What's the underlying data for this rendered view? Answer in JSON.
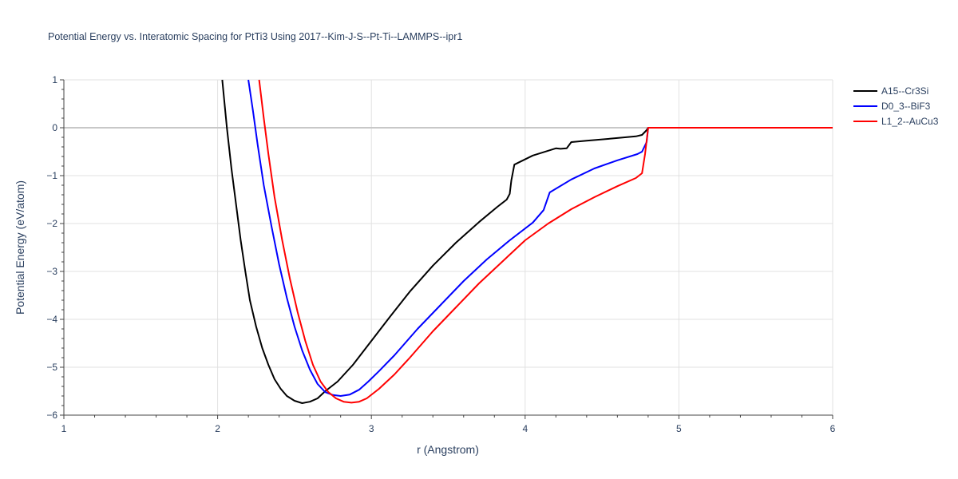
{
  "chart_data": {
    "type": "line",
    "title": "Potential Energy vs. Interatomic Spacing for PtTi3 Using 2017--Kim-J-S--Pt-Ti--LAMMPS--ipr1",
    "xlabel": "r (Angstrom)",
    "ylabel": "Potential Energy (eV/atom)",
    "xlim": [
      1,
      6
    ],
    "ylim": [
      -6,
      1
    ],
    "xticks": [
      1,
      2,
      3,
      4,
      5,
      6
    ],
    "xtick_labels": [
      "1",
      "2",
      "3",
      "4",
      "5",
      "6"
    ],
    "yticks": [
      1,
      0,
      -1,
      -2,
      -3,
      -4,
      -5,
      -6
    ],
    "ytick_labels": [
      "1",
      "0",
      "−1",
      "−2",
      "−3",
      "−4",
      "−5",
      "−6"
    ],
    "grid": true,
    "legend_position": "top-right",
    "series": [
      {
        "name": "A15--Cr3Si",
        "color": "#000000",
        "x": [
          2.03,
          2.06,
          2.09,
          2.12,
          2.15,
          2.18,
          2.21,
          2.25,
          2.29,
          2.33,
          2.37,
          2.41,
          2.45,
          2.5,
          2.55,
          2.6,
          2.65,
          2.7,
          2.78,
          2.88,
          3.0,
          3.12,
          3.25,
          3.4,
          3.55,
          3.7,
          3.82,
          3.88,
          3.9,
          3.91,
          3.93,
          4.05,
          4.2,
          4.23,
          4.27,
          4.3,
          4.4,
          4.55,
          4.72,
          4.76,
          4.79,
          4.8,
          5.0,
          5.5,
          6.0
        ],
        "y": [
          1.0,
          0.0,
          -0.85,
          -1.6,
          -2.35,
          -3.0,
          -3.6,
          -4.15,
          -4.6,
          -4.95,
          -5.25,
          -5.45,
          -5.6,
          -5.7,
          -5.75,
          -5.72,
          -5.65,
          -5.5,
          -5.3,
          -4.95,
          -4.45,
          -3.95,
          -3.42,
          -2.88,
          -2.4,
          -1.97,
          -1.65,
          -1.5,
          -1.38,
          -1.1,
          -0.77,
          -0.58,
          -0.43,
          -0.44,
          -0.43,
          -0.3,
          -0.27,
          -0.23,
          -0.18,
          -0.15,
          -0.05,
          0.0,
          0.0,
          0.0,
          0.0
        ]
      },
      {
        "name": "D0_3--BiF3",
        "color": "#0000ff",
        "x": [
          2.2,
          2.23,
          2.26,
          2.3,
          2.35,
          2.4,
          2.45,
          2.5,
          2.55,
          2.6,
          2.65,
          2.7,
          2.75,
          2.8,
          2.86,
          2.92,
          2.98,
          3.05,
          3.15,
          3.3,
          3.45,
          3.6,
          3.75,
          3.9,
          4.05,
          4.12,
          4.16,
          4.3,
          4.45,
          4.6,
          4.73,
          4.76,
          4.79,
          4.8,
          5.0,
          5.5,
          6.0
        ],
        "y": [
          1.0,
          0.35,
          -0.35,
          -1.2,
          -2.05,
          -2.85,
          -3.55,
          -4.15,
          -4.65,
          -5.05,
          -5.35,
          -5.52,
          -5.58,
          -5.6,
          -5.57,
          -5.47,
          -5.3,
          -5.08,
          -4.75,
          -4.2,
          -3.7,
          -3.2,
          -2.75,
          -2.35,
          -1.98,
          -1.72,
          -1.35,
          -1.08,
          -0.85,
          -0.68,
          -0.55,
          -0.5,
          -0.3,
          0.0,
          0.0,
          0.0,
          0.0
        ]
      },
      {
        "name": "L1_2--AuCu3",
        "color": "#ff0000",
        "x": [
          2.27,
          2.3,
          2.33,
          2.37,
          2.42,
          2.47,
          2.52,
          2.57,
          2.62,
          2.67,
          2.72,
          2.77,
          2.82,
          2.87,
          2.92,
          2.97,
          3.05,
          3.15,
          3.25,
          3.4,
          3.55,
          3.7,
          3.85,
          4.0,
          4.15,
          4.3,
          4.45,
          4.6,
          4.72,
          4.76,
          4.78,
          4.8,
          5.0,
          5.5,
          6.0
        ],
        "y": [
          1.0,
          0.2,
          -0.55,
          -1.45,
          -2.35,
          -3.15,
          -3.85,
          -4.45,
          -4.95,
          -5.3,
          -5.52,
          -5.65,
          -5.72,
          -5.74,
          -5.72,
          -5.65,
          -5.45,
          -5.15,
          -4.8,
          -4.25,
          -3.75,
          -3.25,
          -2.8,
          -2.35,
          -2.0,
          -1.7,
          -1.45,
          -1.22,
          -1.05,
          -0.95,
          -0.55,
          0.0,
          0.0,
          0.0,
          0.0
        ]
      }
    ]
  }
}
